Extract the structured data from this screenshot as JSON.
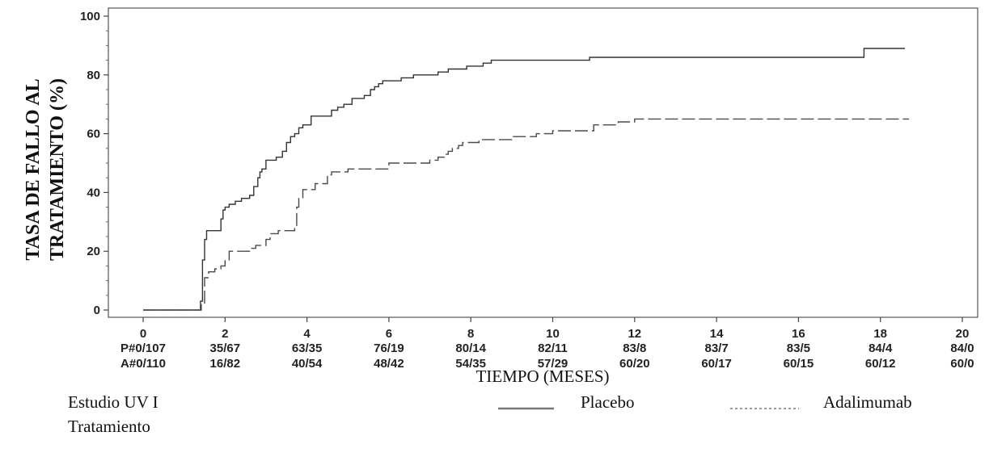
{
  "chart_data": {
    "type": "line",
    "ylabel_lines": [
      "TASA DE FALLO AL",
      "TRATAMIENTO (%)"
    ],
    "xlabel": "TIEMPO (MESES)",
    "xlim": [
      0,
      20
    ],
    "ylim": [
      0,
      100
    ],
    "x_ticks": [
      "0",
      "2",
      "4",
      "6",
      "8",
      "10",
      "12",
      "14",
      "16",
      "18",
      "20"
    ],
    "y_ticks": [
      "0",
      "20",
      "40",
      "60",
      "80",
      "100"
    ],
    "at_risk": {
      "P": [
        "P#0/107",
        "35/67",
        "63/35",
        "76/19",
        "80/14",
        "82/11",
        "83/8",
        "83/7",
        "83/5",
        "84/4",
        "84/0"
      ],
      "A": [
        "A#0/110",
        "16/82",
        "40/54",
        "48/42",
        "54/35",
        "57/29",
        "60/20",
        "60/17",
        "60/15",
        "60/12",
        "60/0"
      ]
    },
    "series": [
      {
        "name": "Placebo",
        "style": "solid",
        "x": [
          0,
          1.37,
          1.4,
          1.45,
          1.5,
          1.55,
          1.6,
          1.9,
          1.95,
          2.0,
          2.1,
          2.25,
          2.4,
          2.6,
          2.7,
          2.8,
          2.85,
          2.9,
          3.0,
          3.25,
          3.4,
          3.5,
          3.6,
          3.7,
          3.8,
          3.9,
          4.0,
          4.1,
          4.5,
          4.6,
          4.75,
          4.9,
          5.1,
          5.4,
          5.55,
          5.65,
          5.75,
          5.85,
          6.0,
          6.3,
          6.6,
          7.2,
          7.45,
          7.9,
          8.3,
          8.5,
          10.9,
          17.6,
          18.6
        ],
        "y": [
          0,
          0,
          3,
          17,
          24,
          27,
          27,
          31,
          34,
          35,
          36,
          37,
          38,
          39,
          42,
          45,
          47,
          48,
          51,
          52,
          54,
          57,
          59,
          60,
          62,
          63,
          63,
          66,
          66,
          68,
          69,
          70,
          72,
          73,
          75,
          76,
          77,
          78,
          78,
          79,
          80,
          81,
          82,
          83,
          84,
          85,
          86,
          89,
          89
        ]
      },
      {
        "name": "Adalimumab",
        "style": "dashed",
        "x": [
          0,
          1.37,
          1.42,
          1.5,
          1.6,
          1.75,
          1.9,
          2.0,
          2.1,
          2.6,
          2.75,
          3.0,
          3.1,
          3.3,
          3.7,
          3.75,
          3.8,
          3.9,
          4.2,
          4.5,
          4.6,
          5.0,
          5.4,
          6.0,
          7.0,
          7.2,
          7.35,
          7.45,
          7.55,
          7.7,
          7.8,
          8.2,
          8.5,
          9.0,
          9.6,
          10.0,
          11.0,
          11.6,
          12.0,
          18.7
        ],
        "y": [
          0,
          0,
          2,
          11,
          13,
          14,
          15,
          17,
          20,
          21,
          22,
          24,
          26,
          27,
          28,
          35,
          38,
          41,
          43,
          46,
          47,
          48,
          48,
          50,
          51,
          52,
          53,
          54,
          55,
          56,
          57,
          58,
          58,
          59,
          60,
          61,
          63,
          64,
          65,
          65
        ]
      }
    ],
    "legend": {
      "position": "bottom",
      "items": [
        {
          "label": "Placebo",
          "style": "solid"
        },
        {
          "label": "Adalimumab",
          "style": "dashed"
        }
      ]
    },
    "caption_lines": [
      "Estudio UV I",
      "Tratamiento"
    ]
  }
}
